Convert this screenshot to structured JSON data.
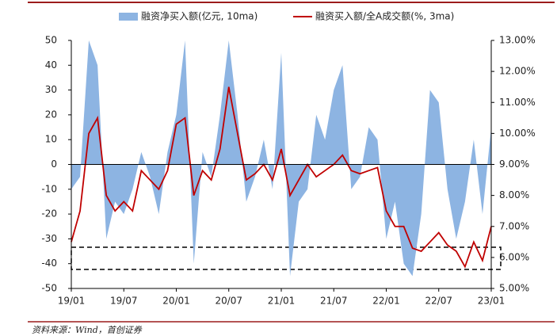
{
  "chart_data": {
    "type": "area-line",
    "source": "资料来源：Wind，首创证券",
    "categories": [
      "19/01",
      null,
      null,
      null,
      null,
      null,
      "19/07",
      null,
      null,
      null,
      null,
      null,
      "20/01",
      null,
      null,
      null,
      null,
      null,
      "20/07",
      null,
      null,
      null,
      null,
      null,
      "21/01",
      null,
      null,
      null,
      null,
      null,
      "21/07",
      null,
      null,
      null,
      null,
      null,
      "22/01",
      null,
      null,
      null,
      null,
      null,
      "22/07",
      null,
      null,
      null,
      null,
      null,
      "23/01"
    ],
    "series": [
      {
        "name": "融资净买入额(亿元, 10ma)",
        "color": "#8db4e2",
        "kind": "area",
        "values": [
          -10,
          -5,
          50,
          40,
          -30,
          -15,
          -20,
          -10,
          5,
          -5,
          -20,
          5,
          20,
          50,
          -40,
          5,
          -5,
          20,
          50,
          20,
          -15,
          -5,
          10,
          -10,
          45,
          -45,
          -15,
          -10,
          20,
          10,
          30,
          40,
          -10,
          -5,
          15,
          10,
          -30,
          -15,
          -40,
          -45,
          -20,
          30,
          25,
          -10,
          -30,
          -15,
          10,
          -20,
          15
        ]
      },
      {
        "name": "融资买入额/全A成交额(%, 3ma)",
        "color": "#c00000",
        "kind": "line",
        "axis": "y2",
        "values": [
          6.5,
          7.5,
          10.0,
          10.5,
          8.0,
          7.5,
          7.8,
          7.5,
          8.8,
          8.5,
          8.2,
          8.8,
          10.3,
          10.5,
          8.0,
          8.8,
          8.5,
          9.5,
          11.5,
          10.0,
          8.5,
          8.7,
          9.0,
          8.5,
          9.5,
          8.0,
          8.5,
          9.0,
          8.6,
          8.8,
          9.0,
          9.3,
          8.8,
          8.7,
          8.8,
          8.9,
          7.5,
          7.0,
          7.0,
          6.3,
          6.2,
          6.5,
          6.8,
          6.4,
          6.2,
          5.7,
          6.5,
          5.9,
          7.0
        ]
      }
    ],
    "ylim": [
      -50,
      50
    ],
    "yticks": [
      -50,
      -40,
      -30,
      -20,
      -10,
      0,
      10,
      20,
      30,
      40,
      50
    ],
    "y2lim": [
      5,
      13
    ],
    "y2ticks": [
      {
        "value": 5,
        "label": "5.00%"
      },
      {
        "value": 6,
        "label": "6.00%"
      },
      {
        "value": 7,
        "label": "7.00%"
      },
      {
        "value": 8,
        "label": "8.00%"
      },
      {
        "value": 9,
        "label": "9.00%"
      },
      {
        "value": 10,
        "label": "10.00%"
      },
      {
        "value": 11,
        "label": "11.00%"
      },
      {
        "value": 12,
        "label": "12.00%"
      },
      {
        "value": 13,
        "label": "13.00%"
      }
    ],
    "legend": "top"
  }
}
